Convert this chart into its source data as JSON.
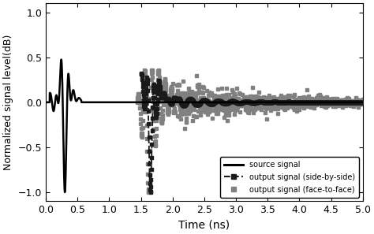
{
  "title": "",
  "xlabel": "Time (ns)",
  "ylabel": "Normalized signal level(dB)",
  "xlim": [
    0,
    5
  ],
  "ylim": [
    -1.1,
    1.1
  ],
  "xticks": [
    0,
    0.5,
    1,
    1.5,
    2,
    2.5,
    3,
    3.5,
    4,
    4.5,
    5
  ],
  "yticks": [
    -1,
    -0.5,
    0,
    0.5,
    1
  ],
  "legend_labels": [
    "source signal",
    "output signal (side-by-side)",
    "output signal (face-to-face)"
  ],
  "source_color": "#000000",
  "sbs_color": "#1a1a1a",
  "ftf_color": "#808080",
  "background_color": "#ffffff",
  "figsize": [
    4.74,
    2.97
  ],
  "dpi": 100,
  "font_size": 9,
  "xlabel_fontsize": 10,
  "ylabel_fontsize": 9,
  "legend_fontsize": 7
}
